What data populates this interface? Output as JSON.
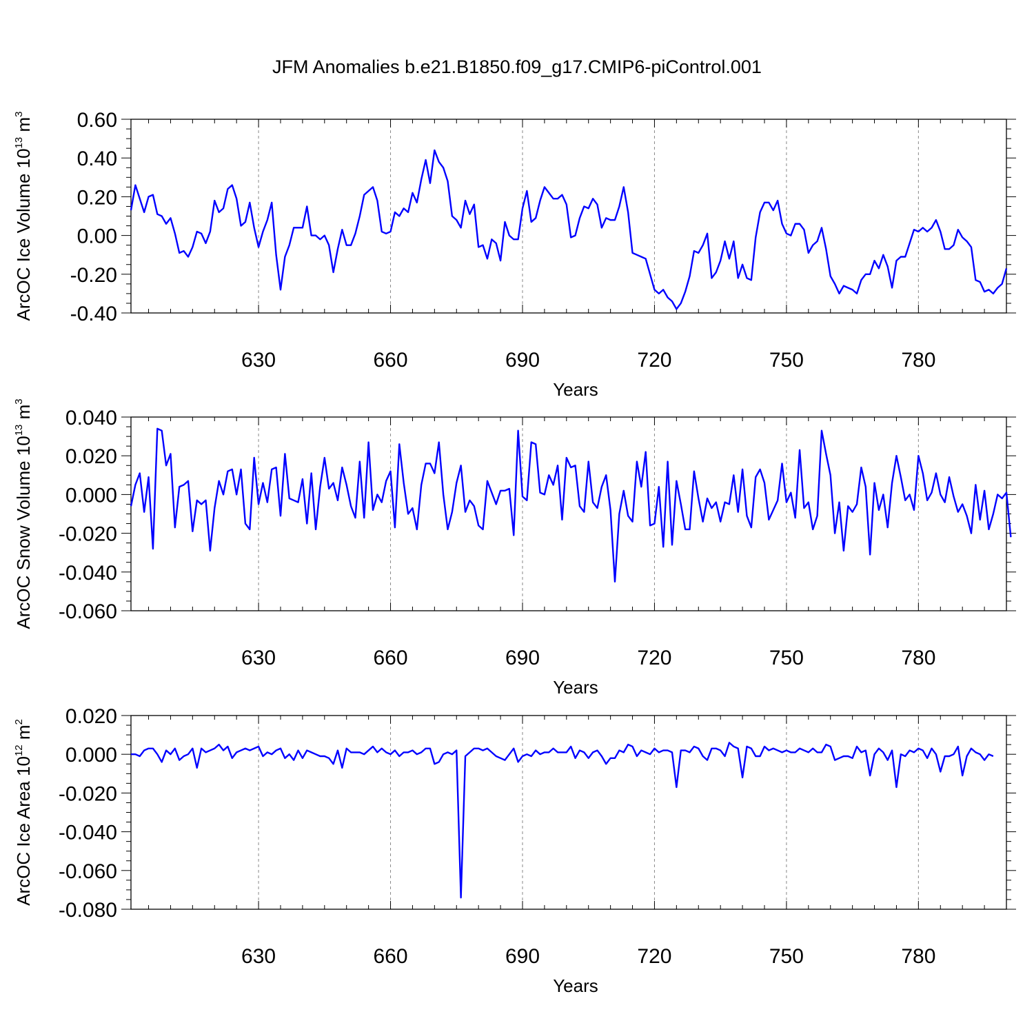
{
  "title": "JFM Anomalies b.e21.B1850.f09_g17.CMIP6-piControl.001",
  "chart_data": [
    {
      "type": "line",
      "name": "ice-volume",
      "ylabel": "ArcOC Ice Volume 10",
      "ylabel_exp": "13",
      "ylabel_unit": " m",
      "ylabel_unit_exp": "3",
      "xlabel": "Years",
      "xlim": [
        601,
        800
      ],
      "ylim": [
        -0.4,
        0.6
      ],
      "yticks": [
        "0.60",
        "0.40",
        "0.20",
        "0.00",
        "-0.20",
        "-0.40"
      ],
      "xticks": [
        "630",
        "660",
        "690",
        "720",
        "750",
        "780"
      ],
      "grid": "vertical dashed",
      "color": "#0000ff",
      "x_start": 601,
      "values": [
        0.13,
        0.26,
        0.19,
        0.12,
        0.2,
        0.21,
        0.11,
        0.1,
        0.06,
        0.09,
        0.01,
        -0.09,
        -0.08,
        -0.11,
        -0.06,
        0.02,
        0.01,
        -0.04,
        0.02,
        0.18,
        0.12,
        0.14,
        0.24,
        0.26,
        0.19,
        0.05,
        0.07,
        0.17,
        0.04,
        -0.06,
        0.02,
        0.08,
        0.17,
        -0.1,
        -0.28,
        -0.11,
        -0.05,
        0.04,
        0.04,
        0.04,
        0.15,
        0.0,
        0.0,
        -0.02,
        0.0,
        -0.05,
        -0.19,
        -0.07,
        0.03,
        -0.05,
        -0.05,
        0.01,
        0.1,
        0.21,
        0.23,
        0.25,
        0.18,
        0.02,
        0.01,
        0.02,
        0.12,
        0.1,
        0.14,
        0.12,
        0.22,
        0.17,
        0.29,
        0.39,
        0.27,
        0.44,
        0.38,
        0.35,
        0.28,
        0.1,
        0.08,
        0.04,
        0.18,
        0.11,
        0.16,
        -0.06,
        -0.05,
        -0.12,
        -0.02,
        -0.04,
        -0.13,
        0.07,
        0.0,
        -0.02,
        -0.02,
        0.14,
        0.23,
        0.07,
        0.09,
        0.18,
        0.25,
        0.22,
        0.19,
        0.19,
        0.21,
        0.16,
        -0.01,
        0.0,
        0.09,
        0.15,
        0.14,
        0.19,
        0.16,
        0.04,
        0.09,
        0.08,
        0.08,
        0.15,
        0.25,
        0.12,
        -0.09,
        -0.1,
        -0.11,
        -0.12,
        -0.2,
        -0.28,
        -0.3,
        -0.28,
        -0.32,
        -0.34,
        -0.38,
        -0.35,
        -0.29,
        -0.21,
        -0.08,
        -0.09,
        -0.05,
        0.01,
        -0.22,
        -0.19,
        -0.13,
        -0.03,
        -0.12,
        -0.03,
        -0.22,
        -0.15,
        -0.22,
        -0.23,
        -0.01,
        0.12,
        0.17,
        0.17,
        0.13,
        0.18,
        0.06,
        0.01,
        0.0,
        0.06,
        0.06,
        0.03,
        -0.09,
        -0.05,
        -0.03,
        0.04,
        -0.07,
        -0.21,
        -0.25,
        -0.3,
        -0.26,
        -0.27,
        -0.28,
        -0.3,
        -0.23,
        -0.2,
        -0.2,
        -0.13,
        -0.17,
        -0.1,
        -0.16,
        -0.27,
        -0.13,
        -0.11,
        -0.11,
        -0.04,
        0.03,
        0.02,
        0.04,
        0.02,
        0.04,
        0.08,
        0.02,
        -0.07,
        -0.07,
        -0.05,
        0.03,
        -0.01,
        -0.03,
        -0.06,
        -0.23,
        -0.24,
        -0.29,
        -0.28,
        -0.3,
        -0.27,
        -0.25,
        -0.17
      ]
    },
    {
      "type": "line",
      "name": "snow-volume",
      "ylabel": "ArcOC Snow Volume 10",
      "ylabel_exp": "13",
      "ylabel_unit": " m",
      "ylabel_unit_exp": "3",
      "xlabel": "Years",
      "xlim": [
        601,
        800
      ],
      "ylim": [
        -0.06,
        0.04
      ],
      "yticks": [
        "0.040",
        "0.020",
        "0.000",
        "-0.020",
        "-0.040",
        "-0.060"
      ],
      "xticks": [
        "630",
        "660",
        "690",
        "720",
        "750",
        "780"
      ],
      "grid": "vertical dashed",
      "color": "#0000ff",
      "x_start": 601,
      "values": [
        -0.006,
        0.005,
        0.011,
        -0.009,
        0.009,
        -0.028,
        0.034,
        0.033,
        0.015,
        0.021,
        -0.017,
        0.004,
        0.005,
        0.007,
        -0.019,
        -0.003,
        -0.005,
        -0.003,
        -0.029,
        -0.007,
        0.007,
        0.0,
        0.012,
        0.013,
        0.0,
        0.013,
        -0.015,
        -0.018,
        0.019,
        -0.005,
        0.006,
        -0.004,
        0.013,
        0.014,
        -0.011,
        0.021,
        -0.002,
        -0.003,
        -0.004,
        0.008,
        -0.015,
        0.011,
        -0.018,
        0.004,
        0.019,
        0.003,
        0.006,
        -0.003,
        0.014,
        0.005,
        -0.006,
        -0.012,
        0.017,
        -0.012,
        0.027,
        -0.008,
        0.0,
        -0.004,
        0.007,
        0.012,
        -0.017,
        0.026,
        0.006,
        -0.01,
        -0.007,
        -0.018,
        0.005,
        0.016,
        0.016,
        0.011,
        0.027,
        0.0,
        -0.018,
        -0.009,
        0.006,
        0.015,
        -0.009,
        -0.003,
        -0.006,
        -0.016,
        -0.018,
        0.007,
        0.001,
        -0.005,
        0.002,
        0.002,
        0.003,
        -0.021,
        0.033,
        -0.001,
        -0.003,
        0.027,
        0.026,
        0.001,
        0.0,
        0.01,
        0.005,
        0.015,
        -0.013,
        0.019,
        0.014,
        0.015,
        -0.006,
        -0.009,
        0.017,
        -0.004,
        -0.007,
        0.004,
        0.01,
        -0.008,
        -0.045,
        -0.01,
        0.002,
        -0.011,
        -0.014,
        0.017,
        0.004,
        0.022,
        -0.016,
        -0.015,
        0.004,
        -0.027,
        0.017,
        -0.026,
        0.007,
        -0.005,
        -0.018,
        -0.018,
        0.012,
        -0.002,
        -0.014,
        -0.002,
        -0.007,
        -0.004,
        -0.014,
        -0.004,
        -0.005,
        0.01,
        -0.009,
        0.013,
        -0.011,
        -0.017,
        0.009,
        0.013,
        0.006,
        -0.013,
        -0.008,
        -0.003,
        0.016,
        -0.004,
        0.001,
        -0.012,
        0.023,
        -0.007,
        -0.004,
        -0.018,
        -0.011,
        0.033,
        0.021,
        0.01,
        -0.02,
        -0.004,
        -0.029,
        -0.006,
        -0.009,
        -0.005,
        0.014,
        0.004,
        -0.031,
        0.006,
        -0.008,
        0.0,
        -0.017,
        0.006,
        0.02,
        0.009,
        -0.003,
        0.0,
        -0.008,
        0.02,
        0.011,
        -0.003,
        0.001,
        0.011,
        0.0,
        -0.004,
        0.009,
        -0.001,
        -0.009,
        -0.005,
        -0.011,
        -0.02,
        0.005,
        -0.013,
        0.002,
        -0.018,
        -0.01,
        0.0,
        -0.002,
        0.001,
        -0.022
      ]
    },
    {
      "type": "line",
      "name": "ice-area",
      "ylabel": "ArcOC Ice Area 10",
      "ylabel_exp": "12",
      "ylabel_unit": " m",
      "ylabel_unit_exp": "2",
      "xlabel": "Years",
      "xlim": [
        601,
        800
      ],
      "ylim": [
        -0.08,
        0.02
      ],
      "yticks": [
        "0.020",
        "0.000",
        "-0.020",
        "-0.040",
        "-0.060",
        "-0.080"
      ],
      "xticks": [
        "630",
        "660",
        "690",
        "720",
        "750",
        "780"
      ],
      "grid": "vertical dashed",
      "color": "#0000ff",
      "x_start": 601,
      "values": [
        0.0,
        0.0,
        -0.001,
        0.002,
        0.003,
        0.003,
        0.0,
        -0.004,
        0.002,
        0.0,
        0.003,
        -0.003,
        -0.001,
        0.0,
        0.003,
        -0.007,
        0.003,
        0.001,
        0.002,
        0.003,
        0.005,
        0.002,
        0.004,
        -0.002,
        0.001,
        0.002,
        0.003,
        0.002,
        0.003,
        0.004,
        -0.001,
        0.001,
        0.0,
        0.002,
        0.003,
        -0.002,
        0.0,
        -0.003,
        0.002,
        -0.002,
        0.002,
        0.001,
        0.0,
        -0.001,
        -0.001,
        -0.002,
        -0.005,
        0.002,
        -0.007,
        0.003,
        0.001,
        0.001,
        0.001,
        0.0,
        0.002,
        0.004,
        0.001,
        0.003,
        0.001,
        0.0,
        0.002,
        -0.001,
        0.001,
        0.001,
        0.002,
        0.0,
        0.001,
        0.003,
        0.003,
        -0.005,
        -0.004,
        0.0,
        0.001,
        0.0,
        0.002,
        -0.074,
        -0.001,
        0.001,
        0.003,
        0.003,
        0.002,
        0.003,
        0.001,
        -0.001,
        -0.002,
        -0.003,
        0.0,
        0.003,
        -0.004,
        -0.001,
        0.0,
        -0.001,
        0.002,
        0.0,
        0.001,
        0.001,
        0.003,
        0.001,
        0.001,
        0.001,
        0.004,
        -0.002,
        0.002,
        0.001,
        -0.002,
        0.001,
        0.002,
        -0.001,
        -0.005,
        -0.002,
        -0.002,
        0.002,
        0.001,
        0.005,
        0.004,
        -0.001,
        0.002,
        0.001,
        0.0,
        0.003,
        0.001,
        0.002,
        0.002,
        0.001,
        -0.017,
        0.002,
        0.002,
        0.001,
        0.004,
        0.003,
        -0.001,
        -0.003,
        0.003,
        0.003,
        0.002,
        -0.001,
        0.006,
        0.004,
        0.003,
        -0.012,
        0.004,
        0.003,
        -0.001,
        -0.001,
        0.004,
        0.002,
        0.003,
        0.002,
        0.001,
        0.002,
        0.001,
        0.001,
        0.003,
        0.002,
        0.001,
        0.003,
        0.001,
        0.001,
        0.005,
        0.004,
        -0.003,
        -0.002,
        -0.001,
        -0.001,
        -0.002,
        0.004,
        0.001,
        0.002,
        -0.011,
        0.0,
        0.003,
        0.001,
        -0.003,
        0.002,
        -0.017,
        0.0,
        -0.001,
        0.002,
        0.001,
        0.003,
        0.002,
        -0.002,
        0.003,
        0.0,
        -0.009,
        -0.001,
        -0.001,
        0.0,
        0.004,
        -0.011,
        -0.001,
        0.003,
        0.001,
        0.0,
        -0.003,
        0.0,
        -0.001
      ]
    }
  ]
}
